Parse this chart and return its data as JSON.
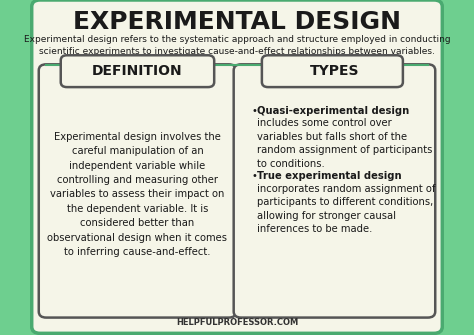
{
  "bg_color": "#6ecf8f",
  "card_bg": "#f5f5e8",
  "title": "EXPERIMENTAL DESIGN",
  "subtitle": "Experimental design refers to the systematic approach and structure employed in conducting\nscientific experiments to investigate cause-and-effect relationships between variables.",
  "left_header": "DEFINITION",
  "right_header": "TYPES",
  "definition_text": "Experimental design involves the\ncareful manipulation of an\nindependent variable while\ncontrolling and measuring other\nvariables to assess their impact on\nthe dependent variable. It is\nconsidered better than\nobservational design when it comes\nto inferring cause-and-effect.",
  "types_bullet1_bold": "Quasi-experimental design",
  "types_bullet1_normal": "includes some control over\nvariables but falls short of the\nrandom assignment of participants\nto conditions.",
  "types_bullet2_bold": "True experimental design",
  "types_bullet2_normal": "incorporates random assignment of\nparticipants to different conditions,\nallowing for stronger causal\ninferences to be made.",
  "footer": "HELPFULPROFESSOR.COM",
  "title_fontsize": 18,
  "subtitle_fontsize": 6.5,
  "header_fontsize": 10,
  "body_fontsize": 7.2,
  "footer_fontsize": 6,
  "title_color": "#1a1a1a",
  "header_color": "#1a1a1a",
  "body_color": "#1a1a1a",
  "footer_color": "#333333"
}
